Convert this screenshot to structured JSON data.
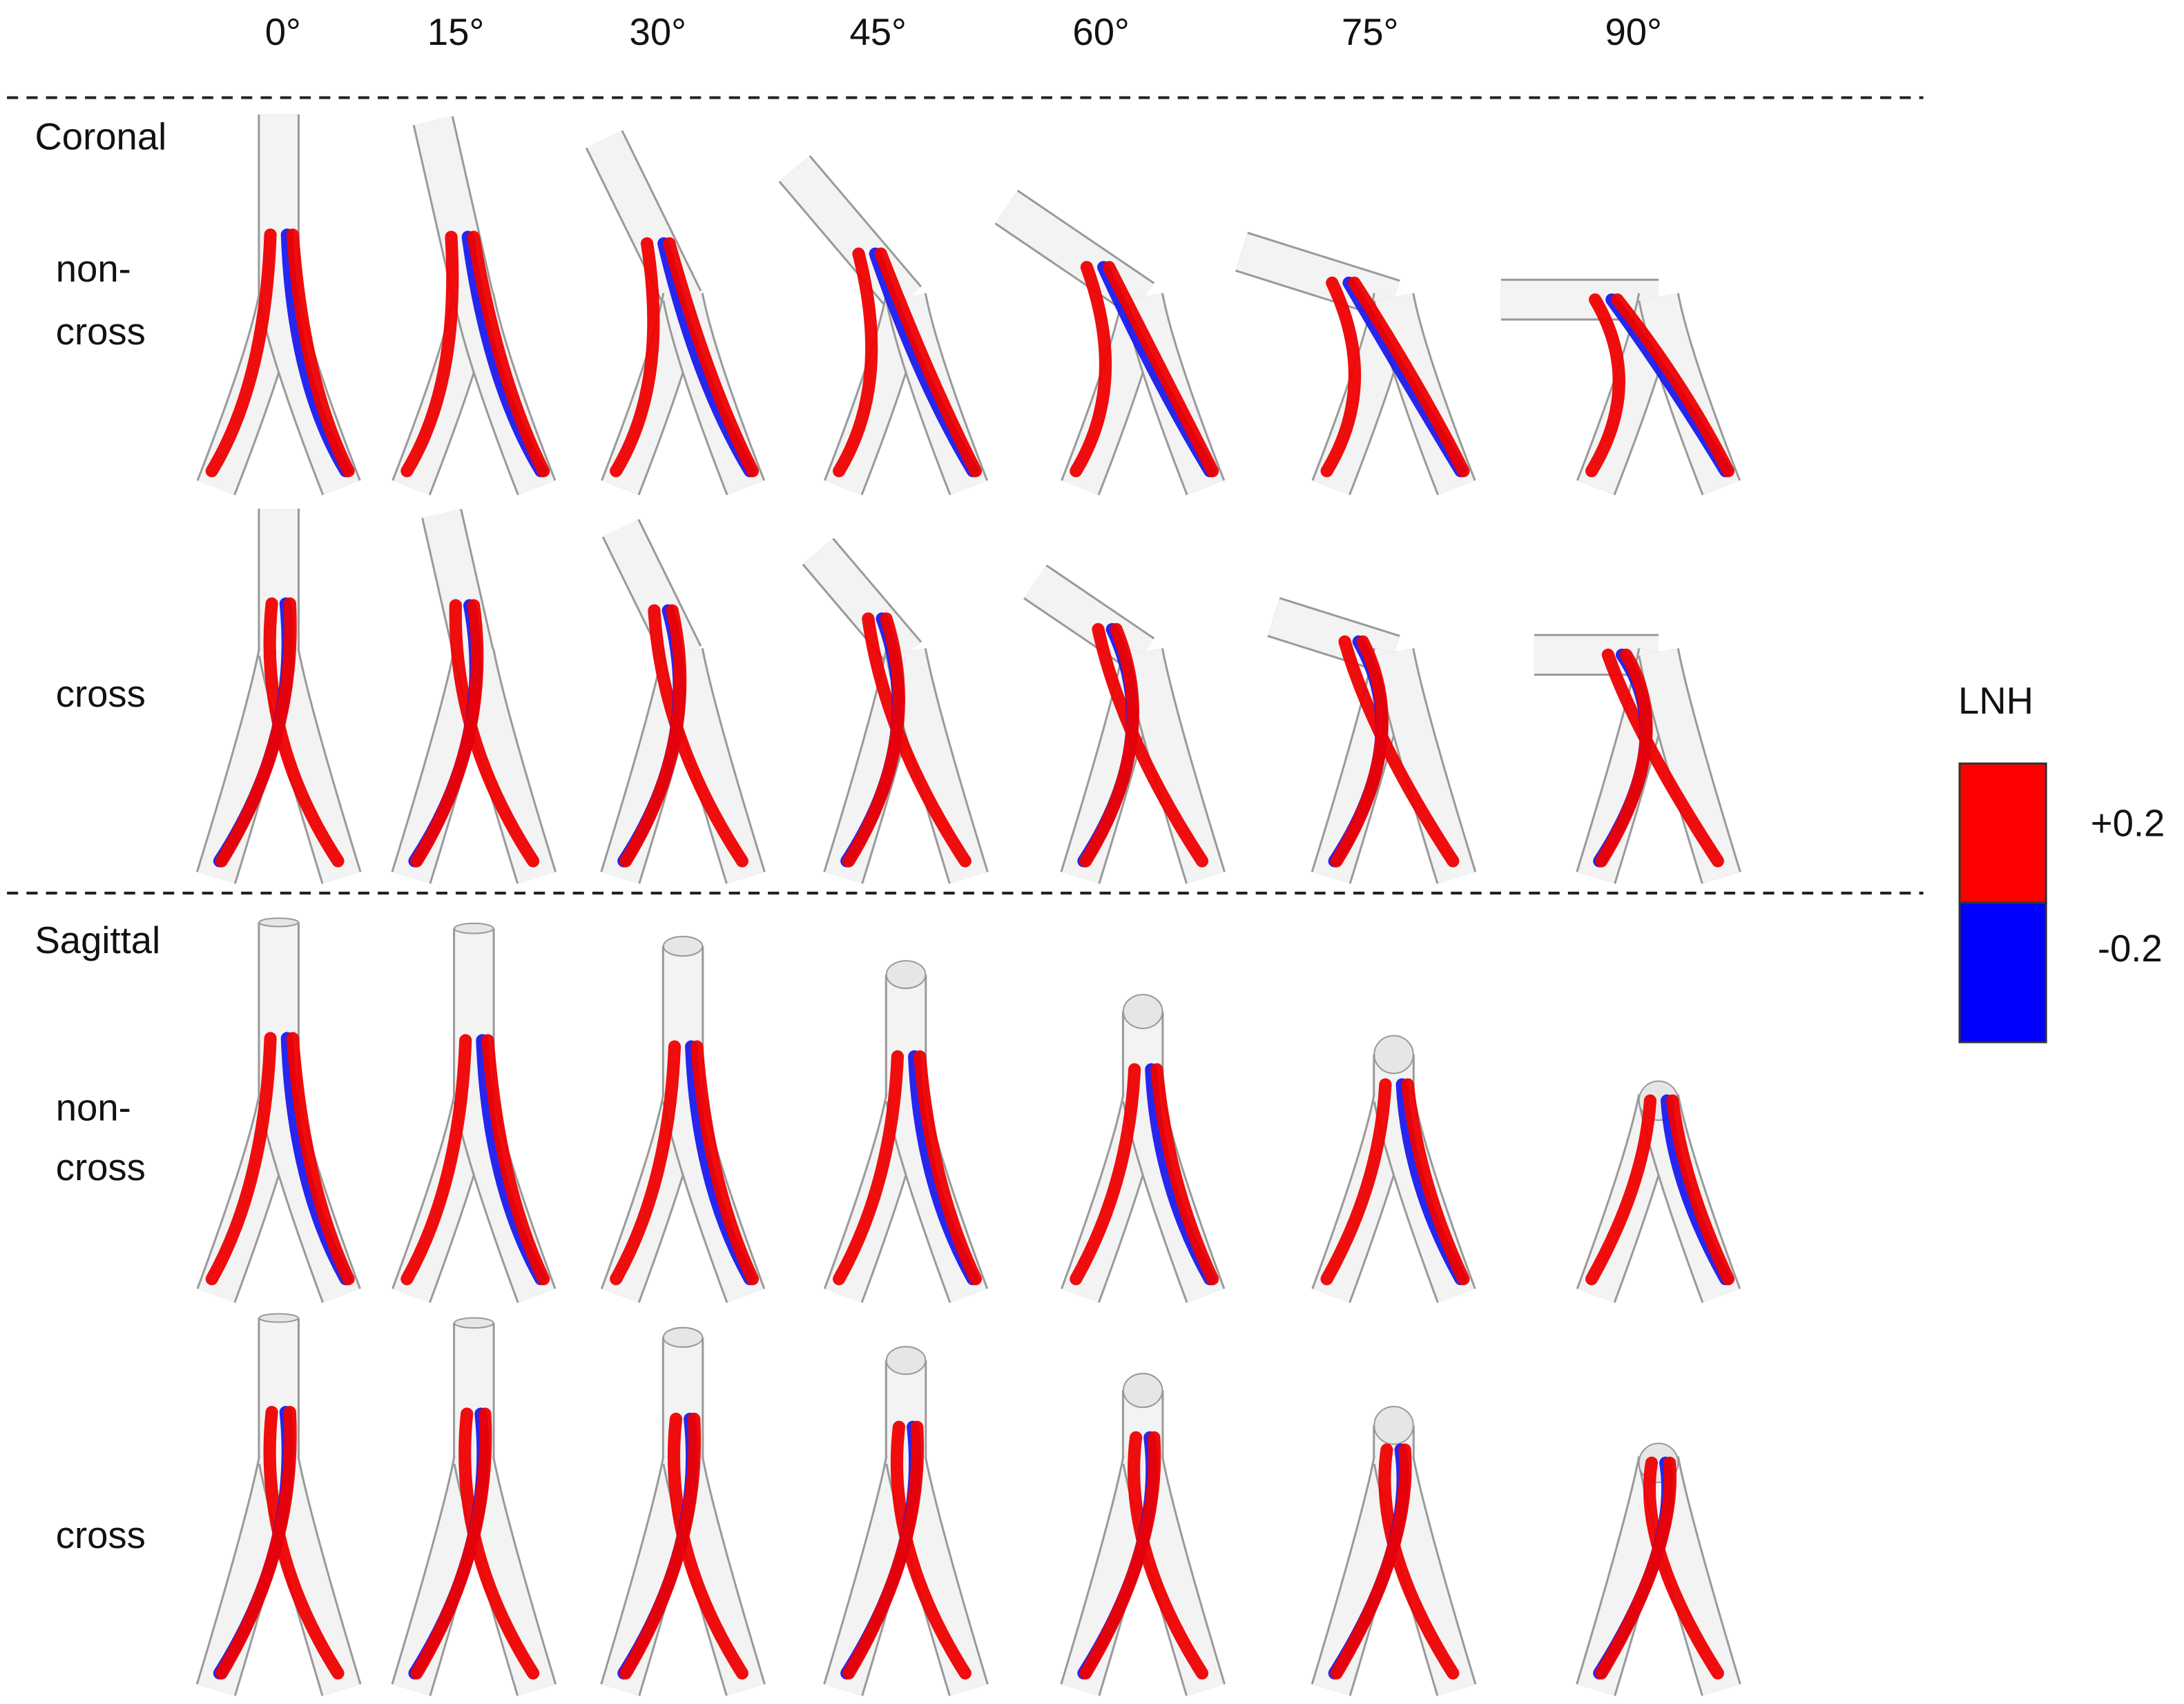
{
  "column_headers": [
    "0°",
    "15°",
    "30°",
    "45°",
    "60°",
    "75°",
    "90°"
  ],
  "sections": [
    {
      "title": "Coronal",
      "rows": [
        [
          "non-",
          "cross"
        ],
        [
          "cross"
        ]
      ]
    },
    {
      "title": "Sagittal",
      "rows": [
        [
          "non-",
          "cross"
        ],
        [
          "cross"
        ]
      ]
    }
  ],
  "legend": {
    "title": "LNH",
    "labels": [
      "+0.2",
      "-0.2"
    ]
  }
}
